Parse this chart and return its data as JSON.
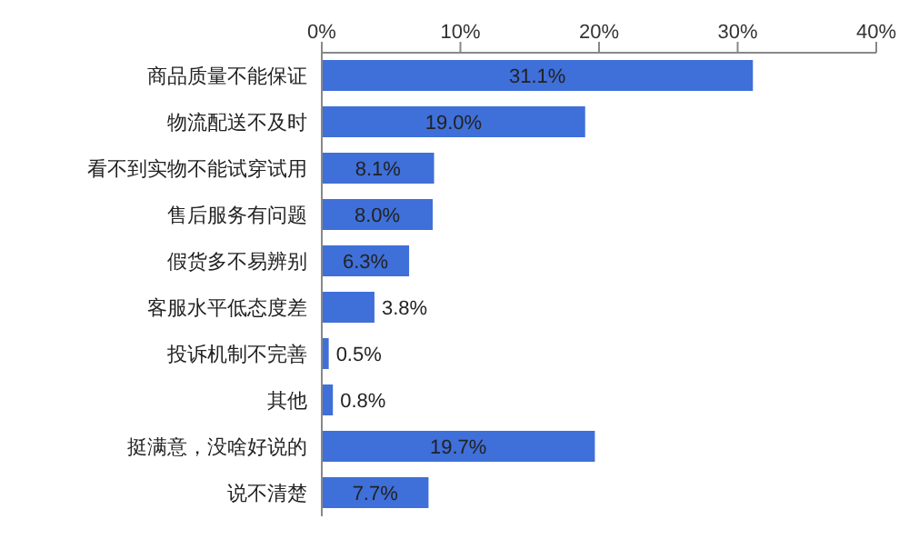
{
  "chart_data": {
    "type": "bar",
    "orientation": "horizontal",
    "categories": [
      "商品质量不能保证",
      "物流配送不及时",
      "看不到实物不能试穿试用",
      "售后服务有问题",
      "假货多不易辨别",
      "客服水平低态度差",
      "投诉机制不完善",
      "其他",
      "挺满意，没啥好说的",
      "说不清楚"
    ],
    "values": [
      31.1,
      19.0,
      8.1,
      8.0,
      6.3,
      3.8,
      0.5,
      0.8,
      19.7,
      7.7
    ],
    "value_labels": [
      "31.1%",
      "19.0%",
      "8.1%",
      "8.0%",
      "6.3%",
      "3.8%",
      "0.5%",
      "0.8%",
      "19.7%",
      "7.7%"
    ],
    "color": "#3f6fd9",
    "xlim": [
      0,
      40
    ],
    "xticks": [
      {
        "value": 0,
        "label": "0%"
      },
      {
        "value": 10,
        "label": "10%"
      },
      {
        "value": 20,
        "label": "20%"
      },
      {
        "value": 30,
        "label": "30%"
      },
      {
        "value": 40,
        "label": "40%"
      }
    ],
    "grid": false
  }
}
